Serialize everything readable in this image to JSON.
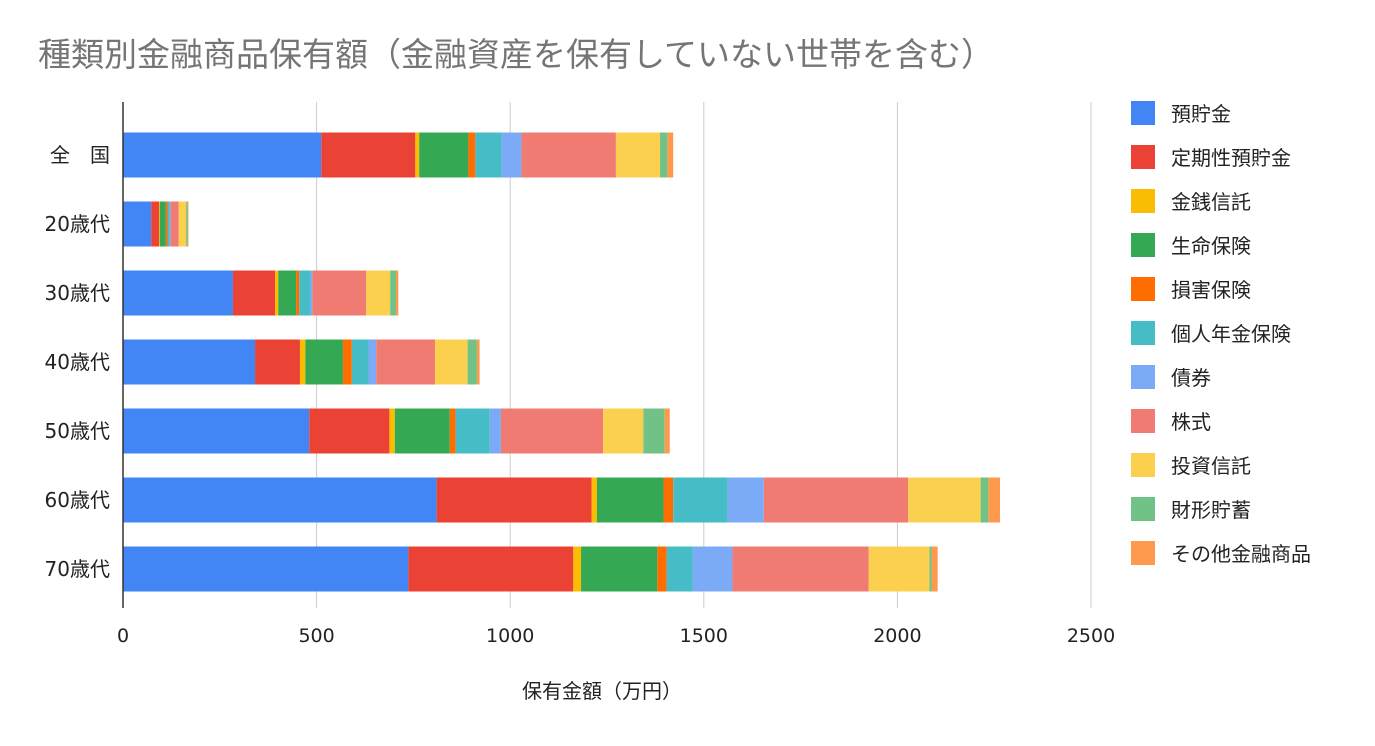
{
  "chart_data": {
    "type": "bar",
    "orientation": "horizontal",
    "stacked": true,
    "title": "種類別金融商品保有額（金融資産を保有していない世帯を含む）",
    "xlabel": "保有金額（万円）",
    "ylabel": "",
    "xlim": [
      0,
      2500
    ],
    "xticks": [
      0,
      500,
      1000,
      1500,
      2000,
      2500
    ],
    "grid": true,
    "legend_position": "right",
    "categories": [
      "全　国",
      "20歳代",
      "30歳代",
      "40歳代",
      "50歳代",
      "60歳代",
      "70歳代"
    ],
    "series": [
      {
        "name": "預貯金",
        "color": "#4285F4",
        "values": [
          512,
          73,
          284,
          341,
          481,
          810,
          737
        ]
      },
      {
        "name": "定期性預貯金",
        "color": "#EA4335",
        "values": [
          243,
          20,
          109,
          116,
          207,
          400,
          426
        ]
      },
      {
        "name": "金銭信託",
        "color": "#FBBC04",
        "values": [
          10,
          2,
          8,
          14,
          14,
          14,
          20
        ]
      },
      {
        "name": "生命保険",
        "color": "#34A853",
        "values": [
          127,
          15,
          46,
          97,
          142,
          172,
          197
        ]
      },
      {
        "name": "損害保険",
        "color": "#FF6D01",
        "values": [
          18,
          5,
          8,
          23,
          15,
          25,
          24
        ]
      },
      {
        "name": "個人年金保険",
        "color": "#46BDC6",
        "values": [
          68,
          5,
          29,
          43,
          88,
          140,
          67
        ]
      },
      {
        "name": "債券",
        "color": "#7BAAF7",
        "values": [
          51,
          3,
          5,
          20,
          29,
          94,
          103
        ]
      },
      {
        "name": "株式",
        "color": "#F07B72",
        "values": [
          244,
          21,
          139,
          152,
          264,
          373,
          352
        ]
      },
      {
        "name": "投資信託",
        "color": "#FCD04F",
        "values": [
          114,
          19,
          62,
          84,
          104,
          187,
          157
        ]
      },
      {
        "name": "財形貯蓄",
        "color": "#71C287",
        "values": [
          19,
          4,
          15,
          24,
          55,
          20,
          6
        ]
      },
      {
        "name": "その他金融商品",
        "color": "#FF994D",
        "values": [
          15,
          2,
          6,
          7,
          13,
          30,
          15
        ]
      }
    ]
  }
}
